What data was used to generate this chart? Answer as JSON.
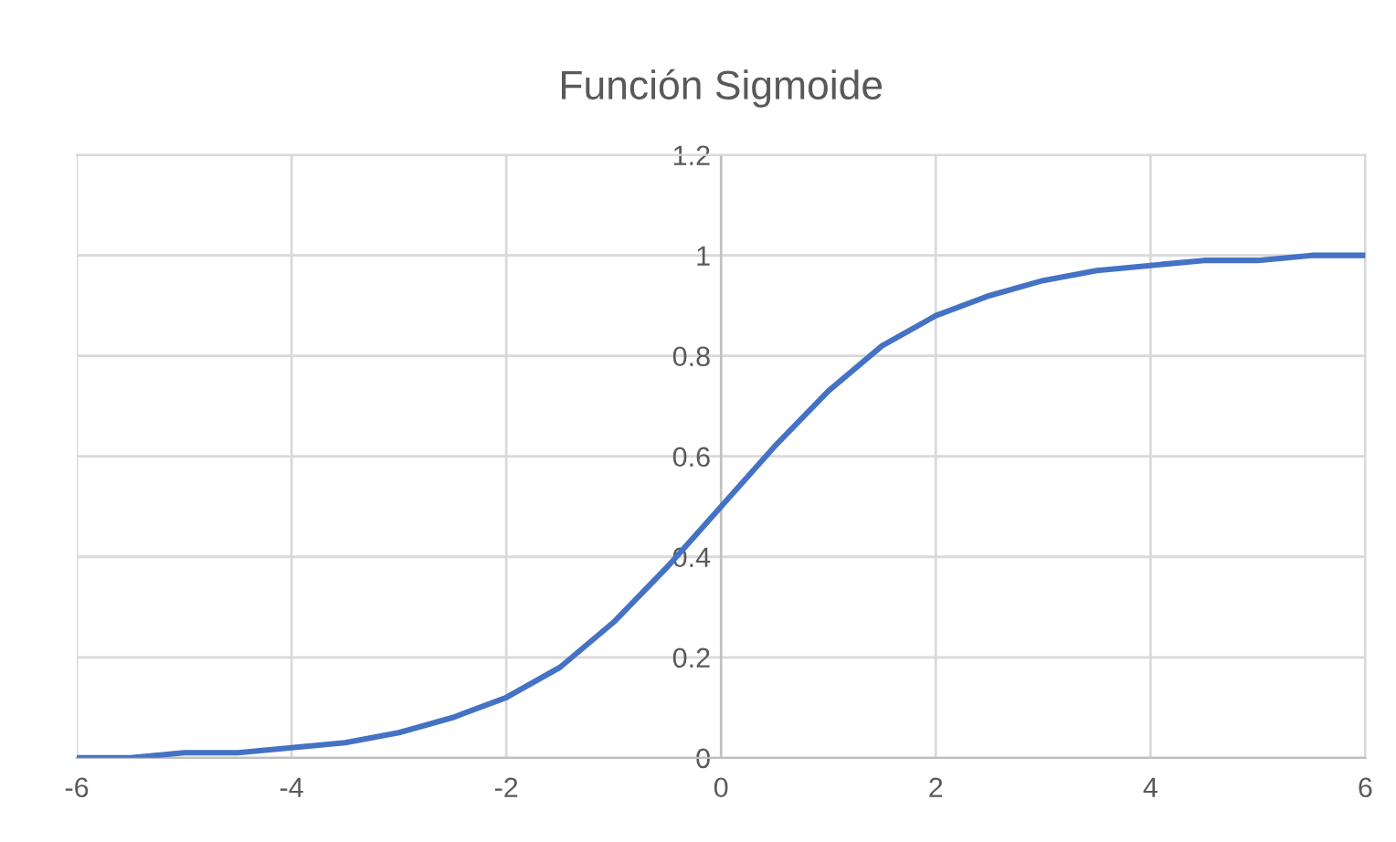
{
  "chart_data": {
    "type": "line",
    "title": "Función Sigmoide",
    "x": [
      -6,
      -5.5,
      -5,
      -4.5,
      -4,
      -3.5,
      -3,
      -2.5,
      -2,
      -1.5,
      -1,
      -0.5,
      0,
      0.5,
      1,
      1.5,
      2,
      2.5,
      3,
      3.5,
      4,
      4.5,
      5,
      5.5,
      6
    ],
    "series": [
      {
        "color": "#4472c4",
        "values": [
          0.0,
          0.0,
          0.01,
          0.01,
          0.02,
          0.03,
          0.05,
          0.08,
          0.12,
          0.18,
          0.27,
          0.38,
          0.5,
          0.62,
          0.73,
          0.82,
          0.88,
          0.92,
          0.95,
          0.97,
          0.98,
          0.99,
          0.99,
          1.0,
          1.0
        ]
      }
    ],
    "xlim": [
      -6,
      6
    ],
    "ylim": [
      0,
      1.2
    ],
    "xticks": [
      -6,
      -4,
      -2,
      0,
      2,
      4,
      6
    ],
    "yticks": [
      0,
      0.2,
      0.4,
      0.6,
      0.8,
      1,
      1.2
    ],
    "grid": true,
    "legend": false,
    "marker": "none",
    "line_style": "solid"
  }
}
